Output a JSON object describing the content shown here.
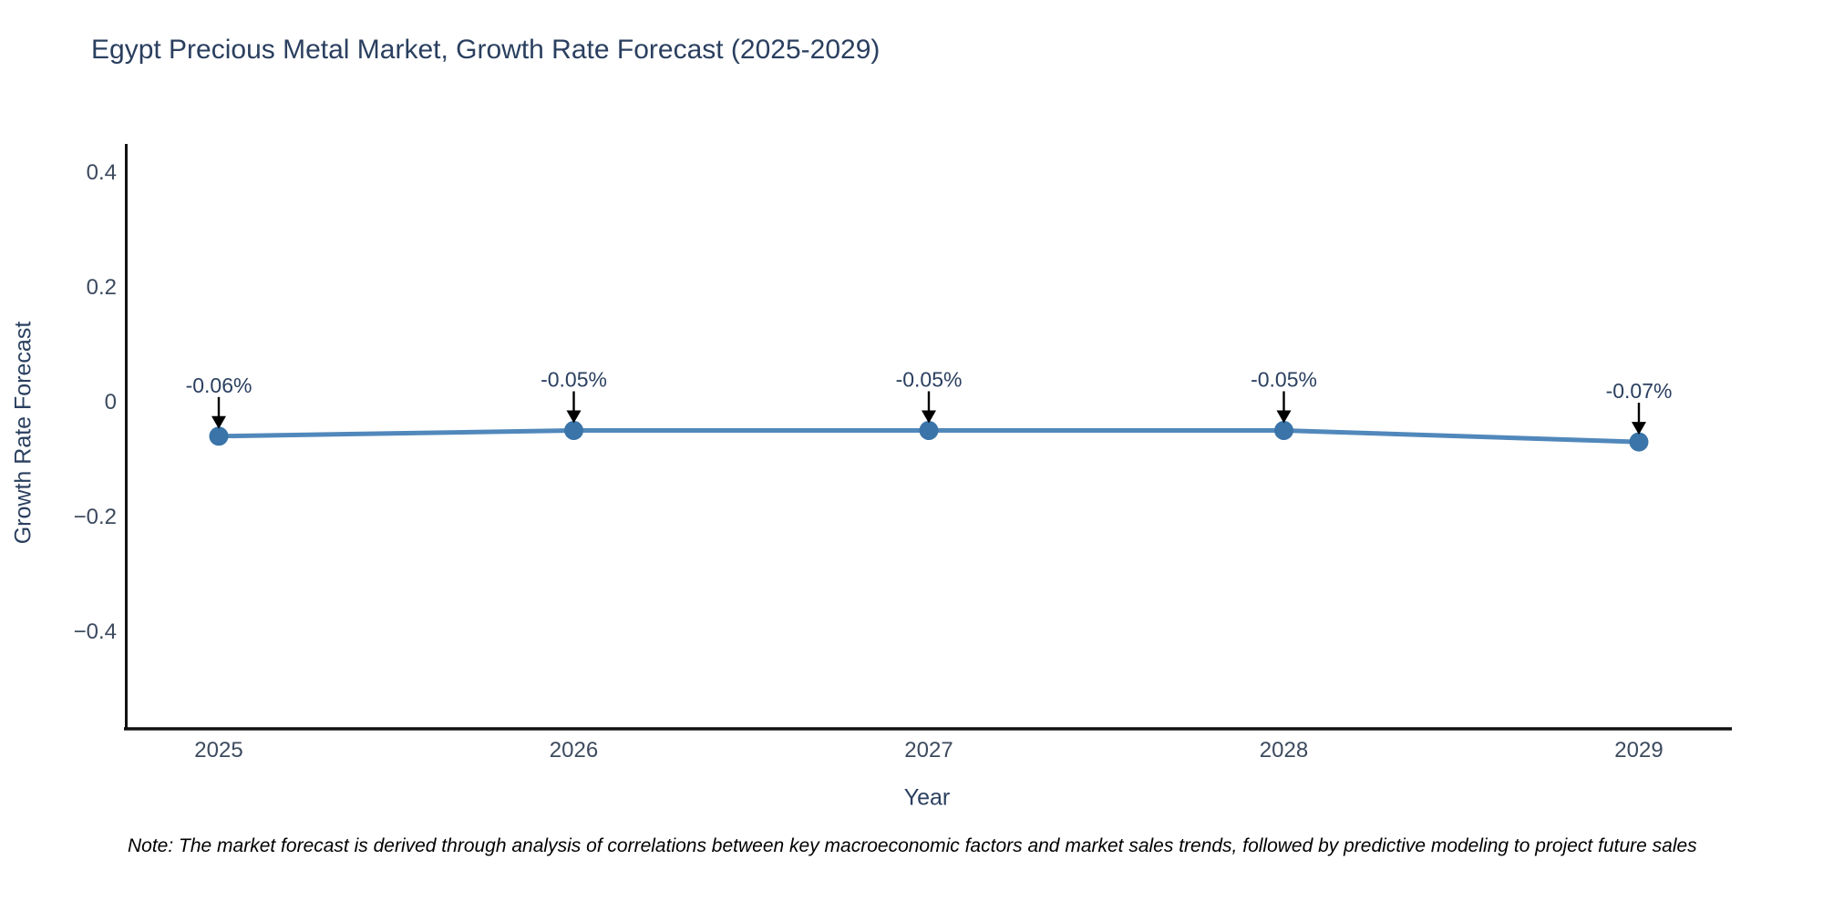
{
  "chart": {
    "title": "Egypt Precious Metal Market, Growth Rate Forecast (2025-2029)"
  },
  "note": {
    "text": "Note: The market forecast is derived through analysis of correlations between key macroeconomic factors and market sales trends, followed by predictive modeling to project future sales"
  },
  "chart_data": {
    "type": "line",
    "title": "Egypt Precious Metal Market, Growth Rate Forecast (2025-2029)",
    "xlabel": "Year",
    "ylabel": "Growth Rate Forecast",
    "x": [
      "2025",
      "2026",
      "2027",
      "2028",
      "2029"
    ],
    "values": [
      -0.06,
      -0.05,
      -0.05,
      -0.05,
      -0.07
    ],
    "point_labels": [
      "-0.06%",
      "-0.05%",
      "-0.05%",
      "-0.05%",
      "-0.07%"
    ],
    "yticks": {
      "values": [
        0.4,
        0.2,
        0,
        -0.2,
        -0.4
      ],
      "labels": [
        "0.4",
        "0.2",
        "0",
        "−0.2",
        "−0.4"
      ]
    },
    "ylim": [
      -0.57,
      0.45
    ],
    "grid": false,
    "legend": "none",
    "annotation_style": "value labels with down arrows pointing at each point",
    "colors": {
      "line": "#5188bb",
      "marker": "#3a74a8",
      "axis_line": "#111111",
      "text": "#2a3f5f",
      "tick_text": "#3c4a5e",
      "arrow": "#000000",
      "note_text": "#000000"
    }
  }
}
